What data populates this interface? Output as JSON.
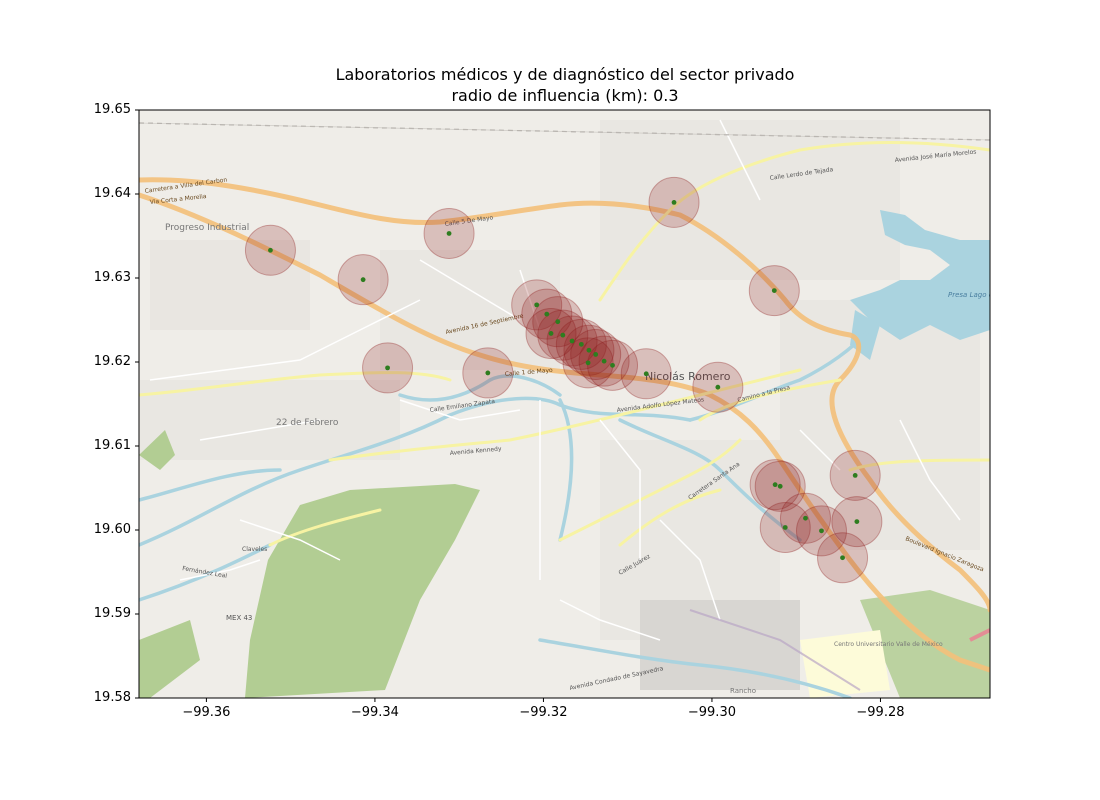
{
  "chart_data": {
    "type": "scatter",
    "title": "Laboratorios médicos y de diagnóstico del sector privado",
    "subtitle": "radio de influencia (km): 0.3",
    "xlim": [
      -99.368,
      -99.267
    ],
    "ylim": [
      19.58,
      19.65
    ],
    "x_ticks": [
      -99.36,
      -99.34,
      -99.32,
      -99.3,
      -99.28
    ],
    "x_tick_labels": [
      "−99.36",
      "−99.34",
      "−99.32",
      "−99.30",
      "−99.28"
    ],
    "y_ticks": [
      19.58,
      19.59,
      19.6,
      19.61,
      19.62,
      19.63,
      19.64,
      19.65
    ],
    "y_tick_labels": [
      "19.58",
      "19.59",
      "19.60",
      "19.61",
      "19.62",
      "19.63",
      "19.64",
      "19.65"
    ],
    "point_color": "#2e7d1f",
    "buffer_color": "#8b1a1a",
    "points": [
      {
        "x": -99.3524,
        "y": 19.6333
      },
      {
        "x": -99.3414,
        "y": 19.6298
      },
      {
        "x": -99.3312,
        "y": 19.6353
      },
      {
        "x": -99.3385,
        "y": 19.6193
      },
      {
        "x": -99.3266,
        "y": 19.6187
      },
      {
        "x": -99.3045,
        "y": 19.639
      },
      {
        "x": -99.2926,
        "y": 19.6285
      },
      {
        "x": -99.3208,
        "y": 19.6268
      },
      {
        "x": -99.3196,
        "y": 19.6257
      },
      {
        "x": -99.3183,
        "y": 19.6248
      },
      {
        "x": -99.3191,
        "y": 19.6234
      },
      {
        "x": -99.3177,
        "y": 19.6232
      },
      {
        "x": -99.3166,
        "y": 19.6225
      },
      {
        "x": -99.3155,
        "y": 19.6221
      },
      {
        "x": -99.3146,
        "y": 19.6214
      },
      {
        "x": -99.3138,
        "y": 19.6209
      },
      {
        "x": -99.3147,
        "y": 19.6199
      },
      {
        "x": -99.3128,
        "y": 19.6201
      },
      {
        "x": -99.3118,
        "y": 19.6196
      },
      {
        "x": -99.3078,
        "y": 19.6186
      },
      {
        "x": -99.2993,
        "y": 19.617
      },
      {
        "x": -99.2925,
        "y": 19.6054
      },
      {
        "x": -99.2919,
        "y": 19.6052
      },
      {
        "x": -99.2913,
        "y": 19.6003
      },
      {
        "x": -99.2889,
        "y": 19.6014
      },
      {
        "x": -99.287,
        "y": 19.5999
      },
      {
        "x": -99.283,
        "y": 19.6065
      },
      {
        "x": -99.2828,
        "y": 19.601
      },
      {
        "x": -99.2845,
        "y": 19.5967
      }
    ]
  },
  "map_labels": {
    "progreso_industrial": "Progreso Industrial",
    "nicolas_romero": "Nicolás Romero",
    "veintidos_febrero": "22 de Febrero",
    "presa": "Presa Lago de Guadalupe",
    "centro_universitario": "Centro Universitario Valle de México",
    "rancho": "Rancho",
    "mex43": "MEX 43",
    "carretera_villa_carbon": "Carretera a Villa del Carbon",
    "via_corta_morelia": "Via Corta a Morelia",
    "calle_5_mayo": "Calle 5 De Mayo",
    "avenida_16_sept": "Avenida 16 de Septiembre",
    "calle_1_mayo": "Calle 1 de Mayo",
    "calle_emiliano_zapata": "Calle Emiliano Zapata",
    "avenida_kennedy": "Avenida Kennedy",
    "avenida_adolfo_lopez_mateos": "Avenida Adolfo López Mateos",
    "camino_presa": "Camino a la Presa",
    "calle_lerdo_tejada": "Calle Lerdo de Tejada",
    "avenida_jose_maria_morelos": "Avenida José María Morelos",
    "boulevard_ignacio_zaragoza": "Boulevard Ignacio Zaragoza",
    "calle_juarez": "Calle Juárez",
    "fernandez_leal": "Fernández Leal",
    "claveles": "Claveles",
    "carretera_santa_ana": "Carretera Santa Ana",
    "avenida_condado_sayavedra": "Avenida Condado de Sayavedra"
  }
}
